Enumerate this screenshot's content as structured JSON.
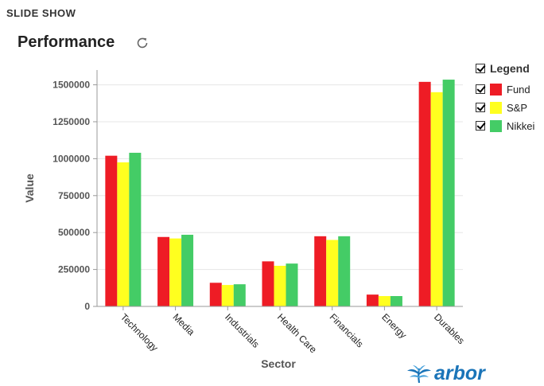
{
  "header": {
    "label": "SLIDE SHOW"
  },
  "page": {
    "title": "Performance",
    "refresh_icon": "refresh-icon"
  },
  "legend": {
    "title": "Legend",
    "items": [
      {
        "label": "Fund",
        "color": "#ee1c25"
      },
      {
        "label": "S&P",
        "color": "#ffff1f"
      },
      {
        "label": "Nikkei",
        "color": "#44cc66"
      }
    ]
  },
  "brand": {
    "name": "arbor",
    "icon": "arbor-logo-icon",
    "color": "#1a74b8"
  },
  "chart_data": {
    "type": "bar",
    "categories": [
      "Technology",
      "Media",
      "Industrials",
      "Health Care",
      "Financials",
      "Energy",
      "Durables"
    ],
    "series": [
      {
        "name": "Fund",
        "color": "#ee1c25",
        "values": [
          1020000,
          470000,
          160000,
          305000,
          475000,
          80000,
          1520000
        ]
      },
      {
        "name": "S&P",
        "color": "#ffff1f",
        "values": [
          975000,
          460000,
          145000,
          275000,
          450000,
          70000,
          1450000
        ]
      },
      {
        "name": "Nikkei",
        "color": "#44cc66",
        "values": [
          1040000,
          485000,
          150000,
          290000,
          475000,
          70000,
          1535000
        ]
      }
    ],
    "xlabel": "Sector",
    "ylabel": "Value",
    "ylim": [
      0,
      1600000
    ],
    "yticks": [
      0,
      250000,
      500000,
      750000,
      1000000,
      1250000,
      1500000
    ],
    "ytick_labels": [
      "0",
      "250000",
      "500000",
      "750000",
      "1000000",
      "1250000",
      "1500000"
    ],
    "grid": true,
    "legend_position": "right"
  }
}
